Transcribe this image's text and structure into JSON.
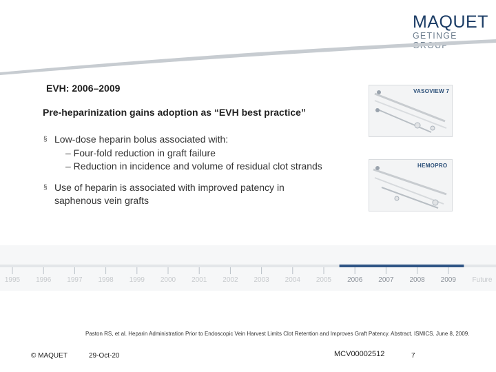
{
  "header": {
    "logo_main": "MAQUET",
    "logo_sub": "GETINGE GROUP"
  },
  "slide": {
    "section_title": "EVH: 2006–2009",
    "headline": "Pre-heparinization gains adoption as “EVH best practice”",
    "bullets": [
      {
        "mark": "§",
        "text": "Low-dose heparin bolus associated with:",
        "subs": [
          "– Four-fold reduction in graft failure",
          "– Reduction in incidence and volume of residual clot strands"
        ]
      },
      {
        "mark": "§",
        "lines": [
          "Use of heparin is associated with improved patency in",
          "saphenous vein grafts"
        ]
      }
    ],
    "images": [
      {
        "label": "VASOVIEW 7"
      },
      {
        "label": "HEMOPRO"
      }
    ]
  },
  "timeline": {
    "years": [
      "1995",
      "1996",
      "1997",
      "1998",
      "1999",
      "2000",
      "2001",
      "2002",
      "2003",
      "2004",
      "2005",
      "2006",
      "2007",
      "2008",
      "2009",
      "Future"
    ],
    "highlight_start": "2006",
    "highlight_end": "2009",
    "colors": {
      "base": "#e3e6e9",
      "highlight": "#2f5585",
      "tick": "#b9c0c7"
    }
  },
  "reference": "Paston RS, et al. Heparin Administration Prior to Endoscopic Vein Harvest Limits Clot Retention and Improves Graft Patency. Abstract. ISMICS. June 8, 2009.",
  "footer": {
    "copyright": "© MAQUET",
    "date": "29-Oct-20",
    "doc_code": "MCV00002512",
    "page": "7"
  }
}
